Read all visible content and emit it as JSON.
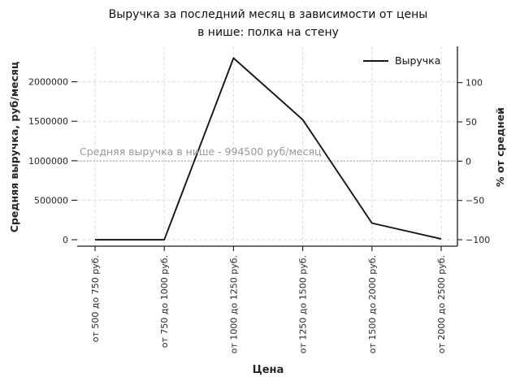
{
  "chart_data": {
    "type": "line",
    "title": "Выручка за последний месяц в зависимости от цены\nв нише: полка на стену",
    "xlabel": "Цена",
    "ylabel_left": "Средняя выручка, руб/месяц",
    "ylabel_right": "% от средней",
    "categories": [
      "от 500 до 750 руб.",
      "от 750 до 1000 руб.",
      "от 1000 до 1250 руб.",
      "от 1250 до 1500 руб.",
      "от 1500 до 2000 руб.",
      "от 2000 до 2500 руб."
    ],
    "series": [
      {
        "name": "Выручка",
        "color": "#141414",
        "values": [
          0,
          0,
          2300000,
          1520000,
          210000,
          10000
        ]
      }
    ],
    "ylim": [
      -82000,
      2449000
    ],
    "yticks_left": [
      {
        "v": 0,
        "label": "0"
      },
      {
        "v": 500000,
        "label": "500000"
      },
      {
        "v": 1000000,
        "label": "1000000"
      },
      {
        "v": 1500000,
        "label": "1500000"
      },
      {
        "v": 2000000,
        "label": "2000000"
      }
    ],
    "yticks_right": [
      {
        "p": -100,
        "label": "−100"
      },
      {
        "p": -50,
        "label": "−50"
      },
      {
        "p": 0,
        "label": "0"
      },
      {
        "p": 50,
        "label": "50"
      },
      {
        "p": 100,
        "label": "100"
      }
    ],
    "mean_value": 994500,
    "mean_label": "Средняя выручка в нише - 994500 руб/месяц",
    "legend": {
      "position": "upper right",
      "entries": [
        "Выручка"
      ]
    },
    "grid": true
  },
  "colors": {
    "line": "#141414",
    "grid": "#dcdcdc",
    "mean_line": "#a0a0a0",
    "annotation": "#999999",
    "spine": "#1a1a1a",
    "tick_label": "#262626"
  }
}
